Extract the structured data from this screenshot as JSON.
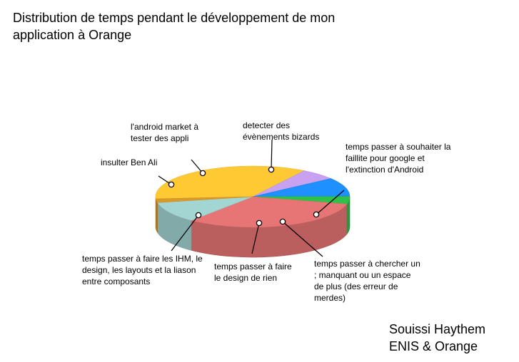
{
  "chart_data": {
    "type": "pie",
    "title": "Distribution de temps pendant le développement de mon application à Orange",
    "slices": [
      {
        "label": "detecter des évènements bizards",
        "value": 35,
        "color": "#FFC933"
      },
      {
        "label": "temps passer à souhaiter la faillite pour google et l'extinction d'Android",
        "value": 6,
        "color": "#C8A2F0"
      },
      {
        "label": "temps passer à chercher un ; manquant ou un espace de plus (des erreur de merdes)",
        "value": 10,
        "color": "#1E90FF"
      },
      {
        "label": "temps passer à faire le design de rien",
        "value": 4,
        "color": "#2EC24A"
      },
      {
        "label": "temps passer à faire les IHM, le design, les layouts et la liason entre composants",
        "value": 32,
        "color": "#E87575"
      },
      {
        "label": "insulter Ben Ali",
        "value": 11,
        "color": "#A3D5D3"
      },
      {
        "label": "l'android market à tester des appli",
        "value": 2,
        "color": "#D99A2B"
      }
    ]
  },
  "credit": {
    "line1": "Souissi Haythem",
    "line2": "ENIS & Orange"
  }
}
